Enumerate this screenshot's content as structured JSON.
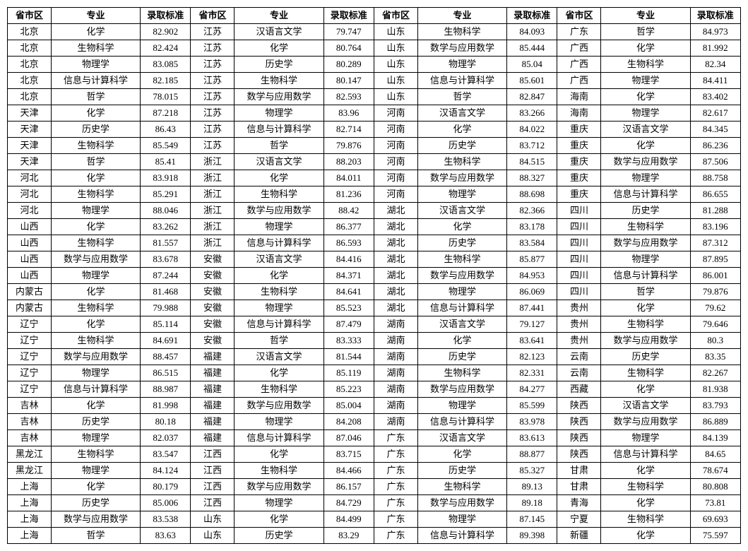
{
  "table": {
    "headers": {
      "region": "省市区",
      "major": "专业",
      "score": "录取标准"
    },
    "rows": [
      [
        "北京",
        "化学",
        "82.902",
        "江苏",
        "汉语言文学",
        "79.747",
        "山东",
        "生物科学",
        "84.093",
        "广东",
        "哲学",
        "84.973"
      ],
      [
        "北京",
        "生物科学",
        "82.424",
        "江苏",
        "化学",
        "80.764",
        "山东",
        "数学与应用数学",
        "85.444",
        "广西",
        "化学",
        "81.992"
      ],
      [
        "北京",
        "物理学",
        "83.085",
        "江苏",
        "历史学",
        "80.289",
        "山东",
        "物理学",
        "85.04",
        "广西",
        "生物科学",
        "82.34"
      ],
      [
        "北京",
        "信息与计算科学",
        "82.185",
        "江苏",
        "生物科学",
        "80.147",
        "山东",
        "信息与计算科学",
        "85.601",
        "广西",
        "物理学",
        "84.411"
      ],
      [
        "北京",
        "哲学",
        "78.015",
        "江苏",
        "数学与应用数学",
        "82.593",
        "山东",
        "哲学",
        "82.847",
        "海南",
        "化学",
        "83.402"
      ],
      [
        "天津",
        "化学",
        "87.218",
        "江苏",
        "物理学",
        "83.96",
        "河南",
        "汉语言文学",
        "83.266",
        "海南",
        "物理学",
        "82.617"
      ],
      [
        "天津",
        "历史学",
        "86.43",
        "江苏",
        "信息与计算科学",
        "82.714",
        "河南",
        "化学",
        "84.022",
        "重庆",
        "汉语言文学",
        "84.345"
      ],
      [
        "天津",
        "生物科学",
        "85.549",
        "江苏",
        "哲学",
        "79.876",
        "河南",
        "历史学",
        "83.712",
        "重庆",
        "化学",
        "86.236"
      ],
      [
        "天津",
        "哲学",
        "85.41",
        "浙江",
        "汉语言文学",
        "88.203",
        "河南",
        "生物科学",
        "84.515",
        "重庆",
        "数学与应用数学",
        "87.506"
      ],
      [
        "河北",
        "化学",
        "83.918",
        "浙江",
        "化学",
        "84.011",
        "河南",
        "数学与应用数学",
        "88.327",
        "重庆",
        "物理学",
        "88.758"
      ],
      [
        "河北",
        "生物科学",
        "85.291",
        "浙江",
        "生物科学",
        "81.236",
        "河南",
        "物理学",
        "88.698",
        "重庆",
        "信息与计算科学",
        "86.655"
      ],
      [
        "河北",
        "物理学",
        "88.046",
        "浙江",
        "数学与应用数学",
        "88.42",
        "湖北",
        "汉语言文学",
        "82.366",
        "四川",
        "历史学",
        "81.288"
      ],
      [
        "山西",
        "化学",
        "83.262",
        "浙江",
        "物理学",
        "86.377",
        "湖北",
        "化学",
        "83.178",
        "四川",
        "生物科学",
        "83.196"
      ],
      [
        "山西",
        "生物科学",
        "81.557",
        "浙江",
        "信息与计算科学",
        "86.593",
        "湖北",
        "历史学",
        "83.584",
        "四川",
        "数学与应用数学",
        "87.312"
      ],
      [
        "山西",
        "数学与应用数学",
        "83.678",
        "安徽",
        "汉语言文学",
        "84.416",
        "湖北",
        "生物科学",
        "85.877",
        "四川",
        "物理学",
        "87.895"
      ],
      [
        "山西",
        "物理学",
        "87.244",
        "安徽",
        "化学",
        "84.371",
        "湖北",
        "数学与应用数学",
        "84.953",
        "四川",
        "信息与计算科学",
        "86.001"
      ],
      [
        "内蒙古",
        "化学",
        "81.468",
        "安徽",
        "生物科学",
        "84.641",
        "湖北",
        "物理学",
        "86.069",
        "四川",
        "哲学",
        "79.876"
      ],
      [
        "内蒙古",
        "生物科学",
        "79.988",
        "安徽",
        "物理学",
        "85.523",
        "湖北",
        "信息与计算科学",
        "87.441",
        "贵州",
        "化学",
        "79.62"
      ],
      [
        "辽宁",
        "化学",
        "85.114",
        "安徽",
        "信息与计算科学",
        "87.479",
        "湖南",
        "汉语言文学",
        "79.127",
        "贵州",
        "生物科学",
        "79.646"
      ],
      [
        "辽宁",
        "生物科学",
        "84.691",
        "安徽",
        "哲学",
        "83.333",
        "湖南",
        "化学",
        "83.641",
        "贵州",
        "数学与应用数学",
        "80.3"
      ],
      [
        "辽宁",
        "数学与应用数学",
        "88.457",
        "福建",
        "汉语言文学",
        "81.544",
        "湖南",
        "历史学",
        "82.123",
        "云南",
        "历史学",
        "83.35"
      ],
      [
        "辽宁",
        "物理学",
        "86.515",
        "福建",
        "化学",
        "85.119",
        "湖南",
        "生物科学",
        "82.331",
        "云南",
        "生物科学",
        "82.267"
      ],
      [
        "辽宁",
        "信息与计算科学",
        "88.987",
        "福建",
        "生物科学",
        "85.223",
        "湖南",
        "数学与应用数学",
        "84.277",
        "西藏",
        "化学",
        "81.938"
      ],
      [
        "吉林",
        "化学",
        "81.998",
        "福建",
        "数学与应用数学",
        "85.004",
        "湖南",
        "物理学",
        "85.599",
        "陕西",
        "汉语言文学",
        "83.793"
      ],
      [
        "吉林",
        "历史学",
        "80.18",
        "福建",
        "物理学",
        "84.208",
        "湖南",
        "信息与计算科学",
        "83.978",
        "陕西",
        "数学与应用数学",
        "86.889"
      ],
      [
        "吉林",
        "物理学",
        "82.037",
        "福建",
        "信息与计算科学",
        "87.046",
        "广东",
        "汉语言文学",
        "83.613",
        "陕西",
        "物理学",
        "84.139"
      ],
      [
        "黑龙江",
        "生物科学",
        "83.547",
        "江西",
        "化学",
        "83.715",
        "广东",
        "化学",
        "88.877",
        "陕西",
        "信息与计算科学",
        "84.65"
      ],
      [
        "黑龙江",
        "物理学",
        "84.124",
        "江西",
        "生物科学",
        "84.466",
        "广东",
        "历史学",
        "85.327",
        "甘肃",
        "化学",
        "78.674"
      ],
      [
        "上海",
        "化学",
        "80.179",
        "江西",
        "数学与应用数学",
        "86.157",
        "广东",
        "生物科学",
        "89.13",
        "甘肃",
        "生物科学",
        "80.808"
      ],
      [
        "上海",
        "历史学",
        "85.006",
        "江西",
        "物理学",
        "84.729",
        "广东",
        "数学与应用数学",
        "89.18",
        "青海",
        "化学",
        "73.81"
      ],
      [
        "上海",
        "数学与应用数学",
        "83.538",
        "山东",
        "化学",
        "84.499",
        "广东",
        "物理学",
        "87.145",
        "宁夏",
        "生物科学",
        "69.693"
      ],
      [
        "上海",
        "哲学",
        "83.63",
        "山东",
        "历史学",
        "83.29",
        "广东",
        "信息与计算科学",
        "89.398",
        "新疆",
        "化学",
        "75.597"
      ]
    ]
  }
}
